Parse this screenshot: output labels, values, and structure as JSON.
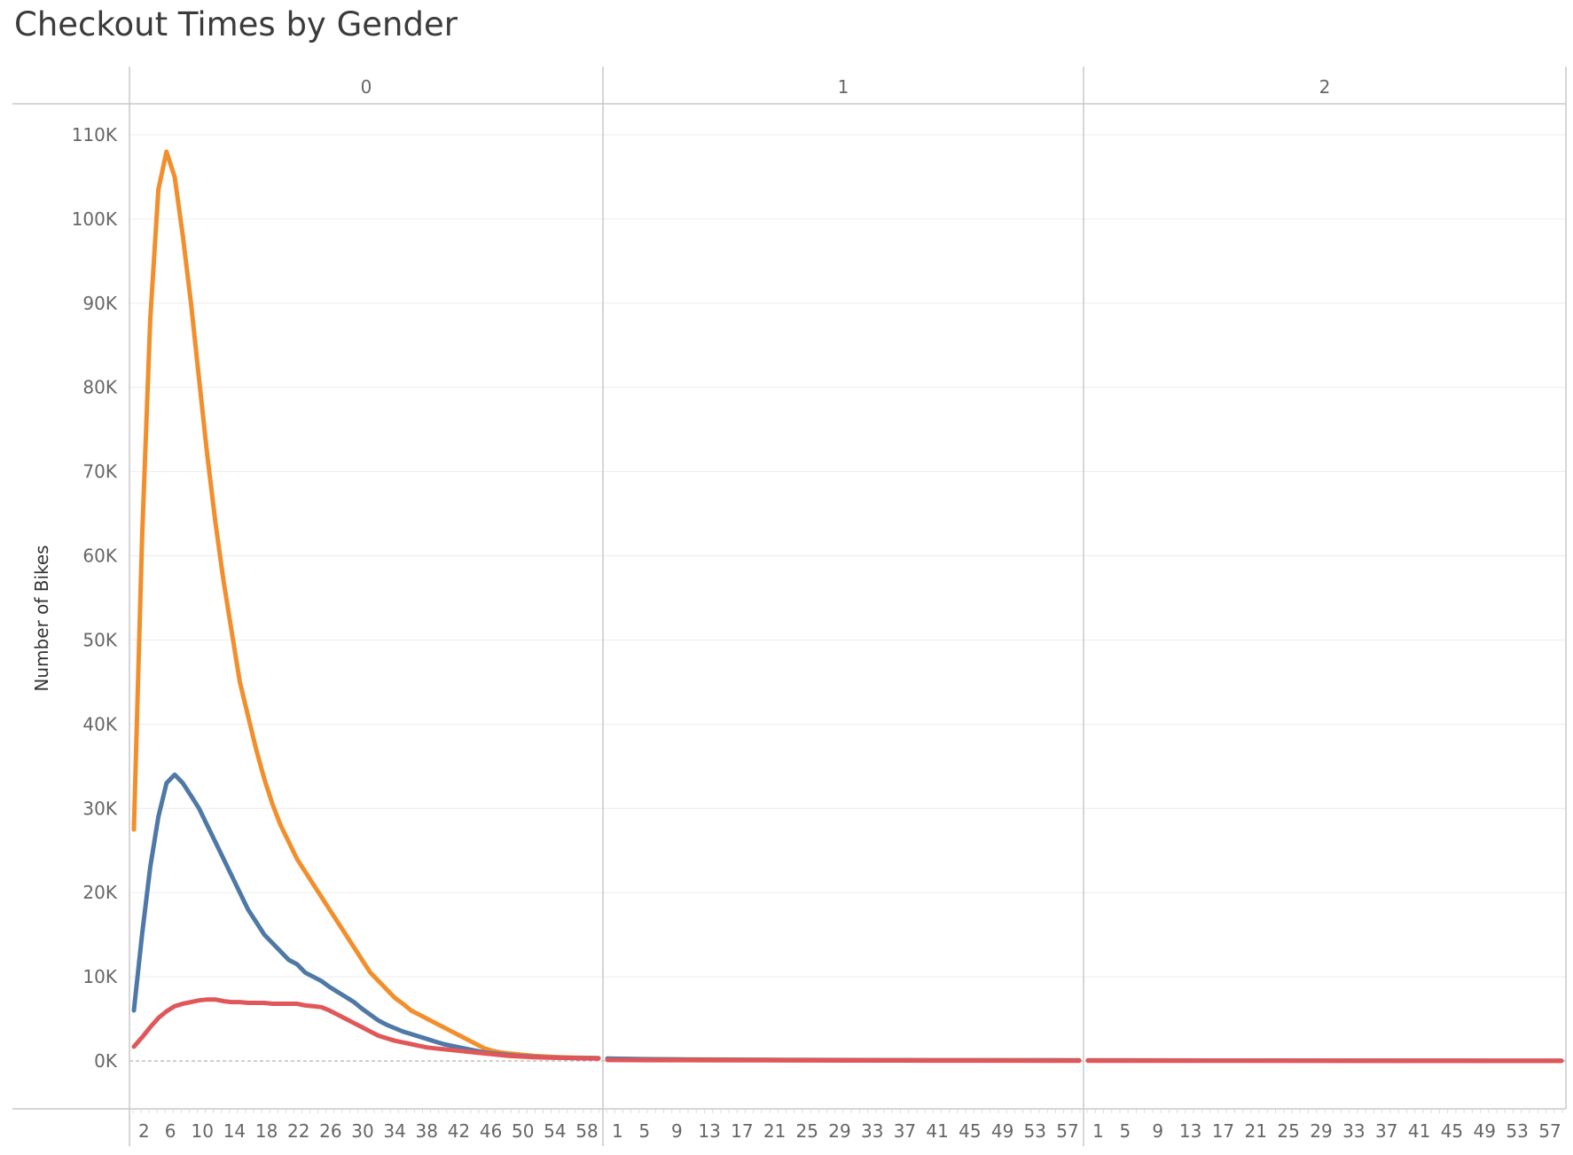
{
  "chart_data": {
    "type": "line",
    "title": "Checkout Times by Gender",
    "ylabel": "Number of Bikes",
    "xlabel": "",
    "ylim": [
      0,
      115000
    ],
    "y_ticks": [
      0,
      10000,
      20000,
      30000,
      40000,
      50000,
      60000,
      70000,
      80000,
      90000,
      100000,
      110000
    ],
    "y_tick_labels": [
      "0K",
      "10K",
      "20K",
      "30K",
      "40K",
      "50K",
      "60K",
      "70K",
      "80K",
      "90K",
      "100K",
      "110K"
    ],
    "grid": true,
    "legend": "none",
    "panels": [
      {
        "label": "0",
        "x_range": [
          2,
          59
        ],
        "x_tick_labels": [
          "2",
          "6",
          "10",
          "14",
          "18",
          "22",
          "26",
          "30",
          "34",
          "38",
          "42",
          "46",
          "50",
          "54",
          "58"
        ],
        "series": [
          {
            "color": "#f28e2b",
            "x": [
              2,
              3,
              4,
              5,
              6,
              7,
              8,
              9,
              10,
              11,
              12,
              13,
              14,
              15,
              16,
              17,
              18,
              19,
              20,
              21,
              22,
              23,
              24,
              25,
              26,
              27,
              28,
              29,
              30,
              31,
              32,
              33,
              34,
              35,
              36,
              37,
              38,
              39,
              40,
              41,
              42,
              43,
              44,
              45,
              46,
              47,
              48,
              49,
              50,
              51,
              52,
              53,
              54,
              55,
              56,
              57,
              58,
              59
            ],
            "values": [
              27500,
              62000,
              88000,
              103500,
              108000,
              105000,
              98000,
              90000,
              81000,
              72000,
              64000,
              57000,
              51000,
              45000,
              41000,
              37000,
              33500,
              30500,
              28000,
              26000,
              24000,
              22500,
              21000,
              19500,
              18000,
              16500,
              15000,
              13500,
              12000,
              10500,
              9500,
              8500,
              7500,
              6800,
              6000,
              5500,
              5000,
              4500,
              4000,
              3500,
              3000,
              2500,
              2000,
              1500,
              1200,
              1000,
              900,
              800,
              700,
              600,
              550,
              500,
              450,
              420,
              400,
              380,
              360,
              350
            ]
          },
          {
            "color": "#4e79a7",
            "x": [
              2,
              3,
              4,
              5,
              6,
              7,
              8,
              9,
              10,
              11,
              12,
              13,
              14,
              15,
              16,
              17,
              18,
              19,
              20,
              21,
              22,
              23,
              24,
              25,
              26,
              27,
              28,
              29,
              30,
              31,
              32,
              33,
              34,
              35,
              36,
              37,
              38,
              39,
              40,
              41,
              42,
              43,
              44,
              45,
              46,
              47,
              48,
              49,
              50,
              51,
              52,
              53,
              54,
              55,
              56,
              57,
              58,
              59
            ],
            "values": [
              6000,
              15000,
              23000,
              29000,
              33000,
              34000,
              33000,
              31500,
              30000,
              28000,
              26000,
              24000,
              22000,
              20000,
              18000,
              16500,
              15000,
              14000,
              13000,
              12000,
              11500,
              10500,
              10000,
              9500,
              8800,
              8200,
              7600,
              7000,
              6200,
              5500,
              4800,
              4300,
              3900,
              3500,
              3200,
              2900,
              2600,
              2300,
              2000,
              1800,
              1600,
              1400,
              1200,
              1000,
              900,
              800,
              700,
              600,
              550,
              500,
              450,
              420,
              400,
              380,
              360,
              350,
              340,
              330
            ]
          },
          {
            "color": "#e15759",
            "x": [
              2,
              3,
              4,
              5,
              6,
              7,
              8,
              9,
              10,
              11,
              12,
              13,
              14,
              15,
              16,
              17,
              18,
              19,
              20,
              21,
              22,
              23,
              24,
              25,
              26,
              27,
              28,
              29,
              30,
              31,
              32,
              33,
              34,
              35,
              36,
              37,
              38,
              39,
              40,
              41,
              42,
              43,
              44,
              45,
              46,
              47,
              48,
              49,
              50,
              51,
              52,
              53,
              54,
              55,
              56,
              57,
              58,
              59
            ],
            "values": [
              1700,
              2800,
              4000,
              5100,
              5900,
              6500,
              6800,
              7000,
              7200,
              7300,
              7300,
              7100,
              7000,
              7000,
              6900,
              6900,
              6900,
              6800,
              6800,
              6800,
              6800,
              6600,
              6500,
              6400,
              6000,
              5500,
              5000,
              4500,
              4000,
              3500,
              3000,
              2700,
              2400,
              2200,
              2000,
              1800,
              1600,
              1500,
              1400,
              1300,
              1200,
              1100,
              1000,
              900,
              800,
              700,
              600,
              550,
              500,
              450,
              420,
              400,
              380,
              360,
              340,
              320,
              310,
              300
            ]
          }
        ]
      },
      {
        "label": "1",
        "x_range": [
          0,
          59
        ],
        "x_tick_labels": [
          "1",
          "5",
          "9",
          "13",
          "17",
          "21",
          "25",
          "29",
          "33",
          "37",
          "41",
          "45",
          "49",
          "53",
          "57"
        ],
        "series": [
          {
            "color": "#f28e2b",
            "x": [
              0,
              5,
              10,
              15,
              20,
              25,
              30,
              35,
              40,
              45,
              50,
              55,
              59
            ],
            "values": [
              250,
              220,
              190,
              170,
              150,
              130,
              120,
              110,
              100,
              90,
              85,
              80,
              75
            ]
          },
          {
            "color": "#4e79a7",
            "x": [
              0,
              5,
              10,
              15,
              20,
              25,
              30,
              35,
              40,
              45,
              50,
              55,
              59
            ],
            "values": [
              280,
              200,
              160,
              140,
              120,
              110,
              100,
              90,
              85,
              80,
              75,
              70,
              65
            ]
          },
          {
            "color": "#e15759",
            "x": [
              0,
              5,
              10,
              15,
              20,
              25,
              30,
              35,
              40,
              45,
              50,
              55,
              59
            ],
            "values": [
              120,
              100,
              90,
              80,
              70,
              60,
              55,
              50,
              45,
              40,
              38,
              35,
              30
            ]
          }
        ]
      },
      {
        "label": "2",
        "x_range": [
          0,
          59
        ],
        "x_tick_labels": [
          "1",
          "5",
          "9",
          "13",
          "17",
          "21",
          "25",
          "29",
          "33",
          "37",
          "41",
          "45",
          "49",
          "53",
          "57"
        ],
        "series": [
          {
            "color": "#f28e2b",
            "x": [
              0,
              5,
              10,
              15,
              20,
              25,
              30,
              35,
              40,
              45,
              50,
              55,
              59
            ],
            "values": [
              70,
              65,
              60,
              55,
              50,
              45,
              40,
              38,
              35,
              32,
              30,
              28,
              25
            ]
          },
          {
            "color": "#4e79a7",
            "x": [
              0,
              5,
              10,
              15,
              20,
              25,
              30,
              35,
              40,
              45,
              50,
              55,
              59
            ],
            "values": [
              60,
              58,
              55,
              52,
              50,
              48,
              45,
              42,
              40,
              38,
              35,
              32,
              30
            ]
          },
          {
            "color": "#e15759",
            "x": [
              0,
              5,
              10,
              15,
              20,
              25,
              30,
              35,
              40,
              45,
              50,
              55,
              59
            ],
            "values": [
              30,
              28,
              25,
              22,
              20,
              18,
              16,
              15,
              14,
              13,
              12,
              11,
              10
            ]
          }
        ]
      }
    ]
  }
}
